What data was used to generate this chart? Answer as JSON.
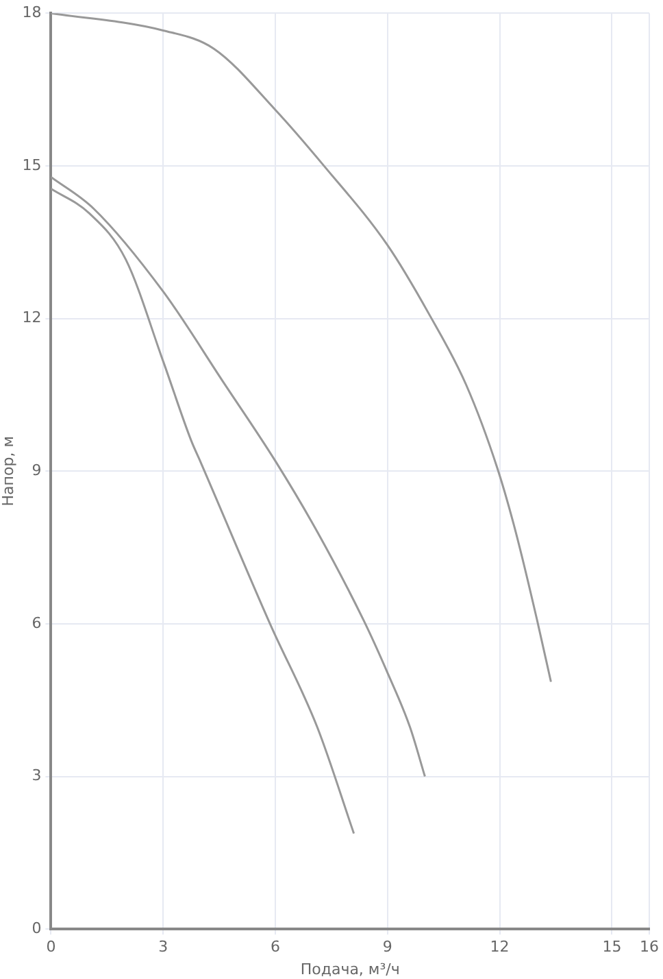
{
  "chart_data": {
    "type": "line",
    "xlabel": "Подача, м³/ч",
    "ylabel": "Напор, м",
    "xlim": [
      0,
      16
    ],
    "xticks": [
      0,
      3,
      6,
      9,
      12,
      15,
      16
    ],
    "ylim": [
      0,
      18
    ],
    "yticks": [
      0,
      3,
      6,
      9,
      12,
      15,
      18
    ],
    "grid": true,
    "legend": false,
    "marker": "none",
    "series": [
      {
        "color": "#999999",
        "x": [
          0,
          3,
          4.36,
          6,
          7.3,
          9,
          10.1,
          11.1,
          11.94,
          12.43,
          13,
          13.37
        ],
        "values": [
          18,
          17.66,
          17.3,
          16.1,
          15,
          13.44,
          12.1,
          10.7,
          9.05,
          7.8,
          6.07,
          4.86
        ]
      },
      {
        "color": "#999999",
        "x": [
          0,
          1.14,
          3,
          4.6,
          6,
          7.12,
          8.36,
          8.98,
          9.6,
          10
        ],
        "values": [
          14.78,
          14.16,
          12.53,
          10.76,
          9.2,
          7.81,
          6.07,
          5.07,
          3.97,
          3
        ]
      },
      {
        "color": "#999999",
        "x": [
          0,
          1.02,
          2,
          3,
          3.75,
          4,
          5.87,
          7.12,
          8.1
        ],
        "values": [
          14.55,
          14.07,
          13.16,
          11.16,
          9.6,
          9.18,
          5.98,
          3.97,
          1.88
        ]
      }
    ]
  }
}
